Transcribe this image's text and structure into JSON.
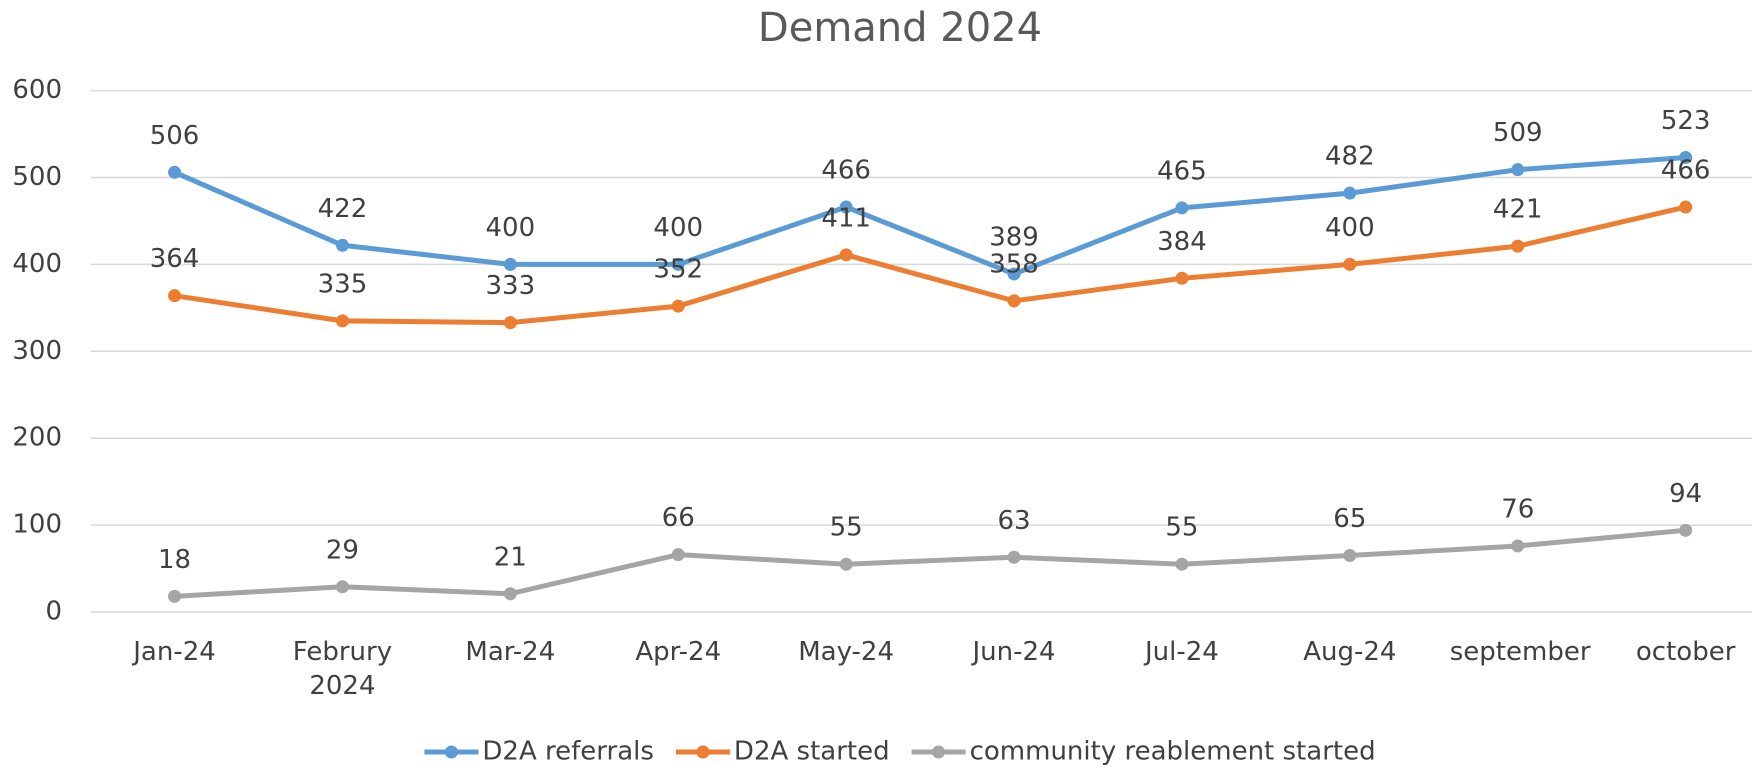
{
  "chart_data": {
    "type": "line",
    "title": "Demand 2024",
    "categories": [
      "Jan-24",
      "Februry 2024",
      "Mar-24",
      "Apr-24",
      "May-24",
      "Jun-24",
      "Jul-24",
      "Aug-24",
      "september",
      "october"
    ],
    "series": [
      {
        "name": "D2A referrals",
        "color": "#5b9bd5",
        "values": [
          506,
          422,
          400,
          400,
          466,
          389,
          465,
          482,
          509,
          523
        ]
      },
      {
        "name": "D2A started",
        "color": "#ed7d31",
        "values": [
          364,
          335,
          333,
          352,
          411,
          358,
          384,
          400,
          421,
          466
        ]
      },
      {
        "name": "community reablement started",
        "color": "#a5a5a5",
        "values": [
          18,
          29,
          21,
          66,
          55,
          63,
          55,
          65,
          76,
          94
        ]
      }
    ],
    "ylim": [
      0,
      600
    ],
    "yticks": [
      0,
      100,
      200,
      300,
      400,
      500,
      600
    ],
    "grid": true,
    "legend": "bottom"
  }
}
